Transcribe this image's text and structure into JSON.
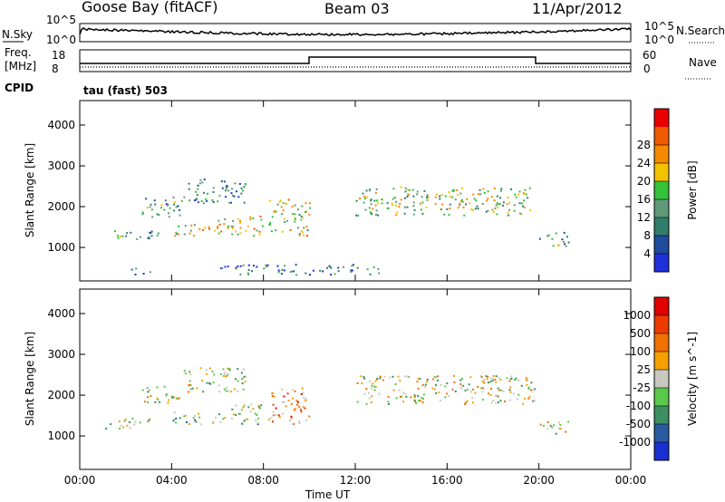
{
  "header": {
    "station": "Goose Bay (fitACF)",
    "beam": "Beam 03",
    "date": "11/Apr/2012"
  },
  "status_strip": {
    "nsky_label": "N.Sky",
    "nsky_ticks": [
      "10^5",
      "10^0"
    ],
    "nsearch_label": "N.Search",
    "nsearch_ticks": [
      "10^5",
      "10^0"
    ],
    "freq_label_1": "Freq.",
    "freq_label_2": "[MHz]",
    "freq_ticks": [
      "18",
      "8"
    ],
    "nave_label": "Nave",
    "nave_ticks": [
      "60",
      "0"
    ],
    "cpid_label": "CPID",
    "cpid_value": "tau (fast) 503"
  },
  "chart_data": [
    {
      "type": "heatmap",
      "title": "",
      "xlabel": "",
      "ylabel": "Slant Range [km]",
      "x_ticks": [
        "00:00",
        "04:00",
        "08:00",
        "12:00",
        "16:00",
        "20:00",
        "00:00"
      ],
      "xlim": [
        0,
        24
      ],
      "y_ticks": [
        "1000",
        "2000",
        "3000",
        "4000"
      ],
      "ylim": [
        180,
        4600
      ],
      "colorbar": {
        "label": "Power [dB]",
        "ticks": [
          "4",
          "8",
          "12",
          "16",
          "20",
          "24",
          "28"
        ],
        "colors": [
          "#1f2fd9",
          "#1f4c9e",
          "#2f7d6a",
          "#5f9a78",
          "#33c23a",
          "#f2c200",
          "#f58a00",
          "#f05a00",
          "#e80000"
        ]
      },
      "scatter_regions": [
        {
          "t0": 1.1,
          "t1": 3.4,
          "r0": 1200,
          "r1": 1450,
          "level": 0.35
        },
        {
          "t0": 2.7,
          "t1": 4.4,
          "r0": 1700,
          "r1": 2250,
          "level": 0.35
        },
        {
          "t0": 4.4,
          "t1": 7.2,
          "r0": 2100,
          "r1": 2700,
          "level": 0.3
        },
        {
          "t0": 4.0,
          "t1": 6.0,
          "r0": 1300,
          "r1": 1600,
          "level": 0.6
        },
        {
          "t0": 6.0,
          "t1": 8.0,
          "r0": 1300,
          "r1": 1800,
          "level": 0.6
        },
        {
          "t0": 8.2,
          "t1": 10.0,
          "r0": 1300,
          "r1": 2200,
          "level": 0.55
        },
        {
          "t0": 12.0,
          "t1": 19.8,
          "r0": 1800,
          "r1": 2500,
          "level": 0.5
        },
        {
          "t0": 20.0,
          "t1": 21.3,
          "r0": 1050,
          "r1": 1400,
          "level": 0.35
        },
        {
          "t0": 2.2,
          "t1": 3.2,
          "r0": 350,
          "r1": 520,
          "level": 0.25
        },
        {
          "t0": 6.0,
          "t1": 13.0,
          "r0": 350,
          "r1": 600,
          "level": 0.25
        }
      ]
    },
    {
      "type": "heatmap",
      "title": "",
      "xlabel": "Time UT",
      "ylabel": "Slant Range [km]",
      "x_ticks": [
        "00:00",
        "04:00",
        "08:00",
        "12:00",
        "16:00",
        "20:00",
        "00:00"
      ],
      "xlim": [
        0,
        24
      ],
      "y_ticks": [
        "1000",
        "2000",
        "3000",
        "4000"
      ],
      "ylim": [
        180,
        4600
      ],
      "colorbar": {
        "label": "Velocity [m s^-1]",
        "ticks": [
          "1000",
          "500",
          "100",
          "25",
          "-25",
          "-100",
          "-500",
          "-1000"
        ],
        "colors": [
          "#1a2fd0",
          "#2a5ba0",
          "#3e8f60",
          "#5ac84a",
          "#c8c8c0",
          "#f5a000",
          "#f07000",
          "#ee3a00",
          "#e00000"
        ]
      },
      "scatter_regions": [
        {
          "t0": 1.1,
          "t1": 3.4,
          "r0": 1200,
          "r1": 1450,
          "level": 0.45
        },
        {
          "t0": 2.7,
          "t1": 4.4,
          "r0": 1800,
          "r1": 2250,
          "level": 0.5
        },
        {
          "t0": 4.4,
          "t1": 7.2,
          "r0": 2100,
          "r1": 2700,
          "level": 0.5
        },
        {
          "t0": 4.0,
          "t1": 6.0,
          "r0": 1300,
          "r1": 1600,
          "level": 0.4
        },
        {
          "t0": 6.0,
          "t1": 8.0,
          "r0": 1300,
          "r1": 1800,
          "level": 0.4
        },
        {
          "t0": 8.2,
          "t1": 10.0,
          "r0": 1300,
          "r1": 2200,
          "level": 0.7
        },
        {
          "t0": 12.0,
          "t1": 19.8,
          "r0": 1800,
          "r1": 2500,
          "level": 0.5
        },
        {
          "t0": 20.0,
          "t1": 21.3,
          "r0": 1050,
          "r1": 1400,
          "level": 0.5
        }
      ]
    }
  ]
}
